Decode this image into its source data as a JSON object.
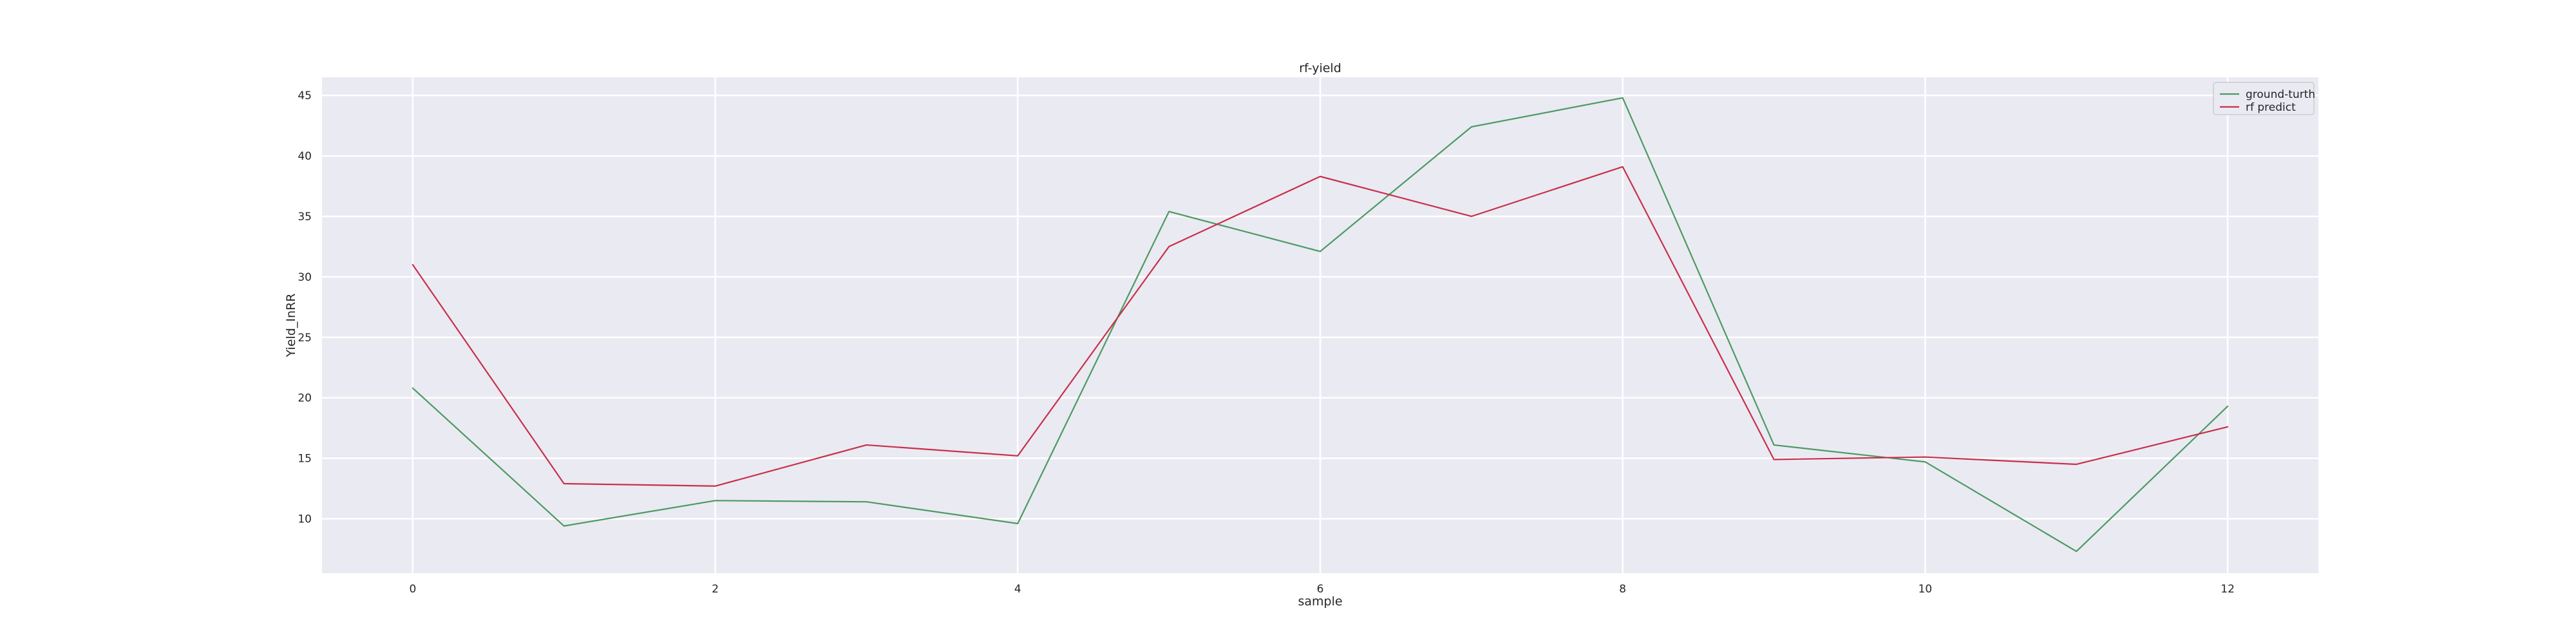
{
  "chart_data": {
    "type": "line",
    "title": "rf-yield",
    "xlabel": "sample",
    "ylabel": "Yield_InRR",
    "x": [
      0,
      1,
      2,
      3,
      4,
      5,
      6,
      7,
      8,
      9,
      10,
      11,
      12
    ],
    "xticks": [
      0,
      2,
      4,
      6,
      8,
      10,
      12
    ],
    "yticks": [
      10,
      15,
      20,
      25,
      30,
      35,
      40,
      45
    ],
    "xlim": [
      -0.6,
      12.6
    ],
    "ylim": [
      5.5,
      46.5
    ],
    "grid": true,
    "legend_position": "top-right",
    "series": [
      {
        "name": "ground-turth",
        "color": "#4c9a62",
        "values": [
          20.8,
          9.4,
          11.5,
          11.4,
          9.6,
          35.4,
          32.1,
          42.4,
          44.8,
          16.1,
          14.7,
          7.3,
          19.3
        ]
      },
      {
        "name": "rf predict",
        "color": "#c8304a",
        "values": [
          31.0,
          12.9,
          12.7,
          16.1,
          15.2,
          32.5,
          38.3,
          35.0,
          39.1,
          14.9,
          15.1,
          14.5,
          17.6
        ]
      }
    ]
  }
}
